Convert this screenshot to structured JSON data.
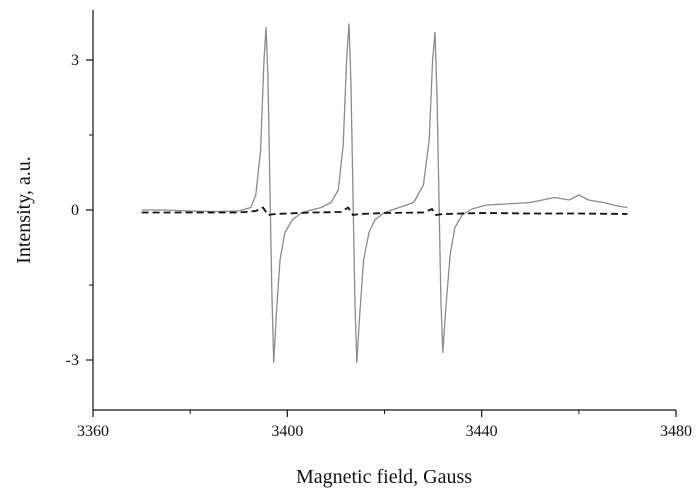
{
  "chart_data": {
    "type": "line",
    "title": "",
    "xlabel": "Magnetic field, Gauss",
    "ylabel": "Intensity, a.u.",
    "xlim": [
      3360,
      3480
    ],
    "ylim": [
      -4,
      4
    ],
    "x_ticks": [
      3360,
      3400,
      3440,
      3480
    ],
    "x_tick_labels": [
      "3360",
      "3400",
      "3440",
      "3480"
    ],
    "x_minor_ticks": [
      3380,
      3420,
      3460
    ],
    "y_ticks": [
      -3,
      0,
      3
    ],
    "y_tick_labels": [
      "-3",
      "0",
      "3"
    ],
    "y_minor_ticks": [
      -1.5,
      1.5
    ],
    "grid": false,
    "legend": "none",
    "series": [
      {
        "style": "solid",
        "color": "#8a8a8a",
        "points": [
          [
            3370,
            0.0
          ],
          [
            3375,
            0.0
          ],
          [
            3380,
            -0.02
          ],
          [
            3385,
            -0.03
          ],
          [
            3390,
            -0.02
          ],
          [
            3392.5,
            0.05
          ],
          [
            3393.5,
            0.3
          ],
          [
            3394.5,
            1.2
          ],
          [
            3395.2,
            3.0
          ],
          [
            3395.6,
            3.65
          ],
          [
            3396.0,
            2.7
          ],
          [
            3396.4,
            0.6
          ],
          [
            3396.8,
            -1.6
          ],
          [
            3397.2,
            -3.05
          ],
          [
            3397.8,
            -2.0
          ],
          [
            3398.5,
            -1.0
          ],
          [
            3399.5,
            -0.45
          ],
          [
            3401,
            -0.2
          ],
          [
            3403,
            -0.05
          ],
          [
            3405,
            0.0
          ],
          [
            3407,
            0.05
          ],
          [
            3409,
            0.15
          ],
          [
            3410.5,
            0.4
          ],
          [
            3411.5,
            1.3
          ],
          [
            3412.2,
            3.0
          ],
          [
            3412.7,
            3.72
          ],
          [
            3413.1,
            2.5
          ],
          [
            3413.5,
            0.4
          ],
          [
            3413.9,
            -1.8
          ],
          [
            3414.3,
            -3.05
          ],
          [
            3414.9,
            -2.1
          ],
          [
            3415.7,
            -1.0
          ],
          [
            3416.8,
            -0.45
          ],
          [
            3418,
            -0.2
          ],
          [
            3420,
            -0.05
          ],
          [
            3423,
            0.05
          ],
          [
            3426,
            0.15
          ],
          [
            3428,
            0.5
          ],
          [
            3429.2,
            1.4
          ],
          [
            3429.9,
            3.0
          ],
          [
            3430.4,
            3.55
          ],
          [
            3430.8,
            2.3
          ],
          [
            3431.2,
            0.3
          ],
          [
            3431.6,
            -1.8
          ],
          [
            3432.0,
            -2.85
          ],
          [
            3432.6,
            -2.0
          ],
          [
            3433.5,
            -0.9
          ],
          [
            3434.5,
            -0.35
          ],
          [
            3436,
            -0.1
          ],
          [
            3438,
            0.02
          ],
          [
            3441,
            0.1
          ],
          [
            3445,
            0.12
          ],
          [
            3450,
            0.15
          ],
          [
            3455,
            0.25
          ],
          [
            3458,
            0.2
          ],
          [
            3460,
            0.3
          ],
          [
            3462,
            0.2
          ],
          [
            3465,
            0.15
          ],
          [
            3468,
            0.08
          ],
          [
            3470,
            0.05
          ]
        ]
      },
      {
        "style": "dashed",
        "color": "#111111",
        "points": [
          [
            3370,
            -0.05
          ],
          [
            3380,
            -0.05
          ],
          [
            3390,
            -0.05
          ],
          [
            3393.5,
            -0.02
          ],
          [
            3395,
            0.05
          ],
          [
            3396,
            -0.1
          ],
          [
            3397.5,
            -0.08
          ],
          [
            3405,
            -0.05
          ],
          [
            3411,
            -0.04
          ],
          [
            3412.5,
            0.05
          ],
          [
            3413.5,
            -0.1
          ],
          [
            3415,
            -0.08
          ],
          [
            3420,
            -0.06
          ],
          [
            3428,
            -0.05
          ],
          [
            3429.8,
            0.02
          ],
          [
            3430.6,
            -0.1
          ],
          [
            3432,
            -0.08
          ],
          [
            3440,
            -0.06
          ],
          [
            3450,
            -0.07
          ],
          [
            3460,
            -0.07
          ],
          [
            3470,
            -0.08
          ]
        ]
      }
    ]
  }
}
